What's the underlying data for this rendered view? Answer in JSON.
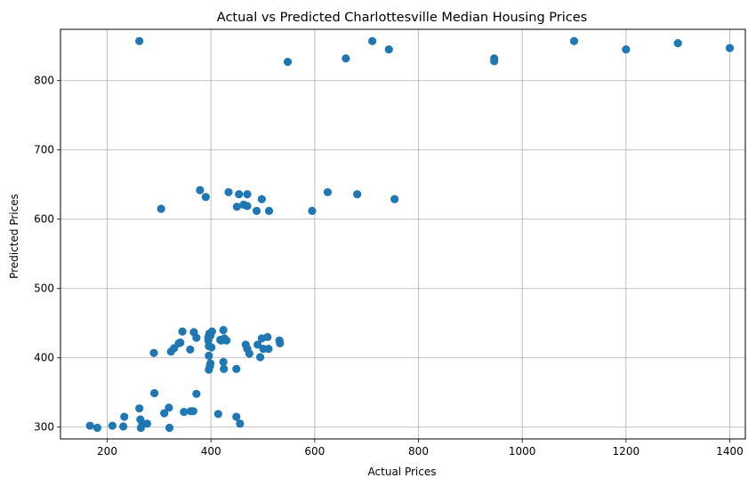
{
  "chart_data": {
    "type": "scatter",
    "title": "Actual vs Predicted Charlottesville Median Housing Prices",
    "xlabel": "Actual Prices",
    "ylabel": "Predicted Prices",
    "xlim": [
      110,
      1430
    ],
    "ylim": [
      283,
      874
    ],
    "x_ticks": [
      200,
      400,
      600,
      800,
      1000,
      1200,
      1400
    ],
    "y_ticks": [
      300,
      400,
      500,
      600,
      700,
      800
    ],
    "grid": true,
    "point_color": "#1f77b4",
    "points": [
      [
        262,
        857
      ],
      [
        548,
        827
      ],
      [
        660,
        832
      ],
      [
        711,
        857
      ],
      [
        743,
        845
      ],
      [
        946,
        832
      ],
      [
        946,
        828
      ],
      [
        1100,
        857
      ],
      [
        1200,
        845
      ],
      [
        1300,
        854
      ],
      [
        1400,
        847
      ],
      [
        304,
        615
      ],
      [
        379,
        642
      ],
      [
        390,
        632
      ],
      [
        434,
        639
      ],
      [
        450,
        618
      ],
      [
        454,
        636
      ],
      [
        463,
        621
      ],
      [
        470,
        619
      ],
      [
        470,
        636
      ],
      [
        488,
        612
      ],
      [
        498,
        629
      ],
      [
        512,
        612
      ],
      [
        595,
        612
      ],
      [
        625,
        639
      ],
      [
        682,
        636
      ],
      [
        754,
        629
      ],
      [
        290,
        407
      ],
      [
        323,
        409
      ],
      [
        329,
        414
      ],
      [
        338,
        421
      ],
      [
        341,
        422
      ],
      [
        345,
        438
      ],
      [
        360,
        412
      ],
      [
        367,
        437
      ],
      [
        372,
        429
      ],
      [
        395,
        430
      ],
      [
        395,
        425
      ],
      [
        397,
        435
      ],
      [
        399,
        432
      ],
      [
        402,
        438
      ],
      [
        396,
        417
      ],
      [
        401,
        415
      ],
      [
        396,
        403
      ],
      [
        399,
        392
      ],
      [
        396,
        383
      ],
      [
        398,
        388
      ],
      [
        420,
        425
      ],
      [
        424,
        440
      ],
      [
        426,
        428
      ],
      [
        430,
        425
      ],
      [
        418,
        426
      ],
      [
        424,
        394
      ],
      [
        425,
        384
      ],
      [
        449,
        384
      ],
      [
        467,
        419
      ],
      [
        470,
        413
      ],
      [
        474,
        406
      ],
      [
        490,
        419
      ],
      [
        495,
        401
      ],
      [
        498,
        428
      ],
      [
        501,
        413
      ],
      [
        509,
        430
      ],
      [
        511,
        413
      ],
      [
        532,
        425
      ],
      [
        533,
        421
      ],
      [
        167,
        302
      ],
      [
        181,
        299
      ],
      [
        210,
        302
      ],
      [
        231,
        301
      ],
      [
        233,
        315
      ],
      [
        262,
        327
      ],
      [
        264,
        311
      ],
      [
        265,
        299
      ],
      [
        268,
        305
      ],
      [
        277,
        305
      ],
      [
        291,
        349
      ],
      [
        310,
        320
      ],
      [
        319,
        328
      ],
      [
        320,
        299
      ],
      [
        348,
        322
      ],
      [
        361,
        323
      ],
      [
        366,
        323
      ],
      [
        372,
        348
      ],
      [
        414,
        319
      ],
      [
        449,
        315
      ],
      [
        456,
        305
      ]
    ]
  }
}
